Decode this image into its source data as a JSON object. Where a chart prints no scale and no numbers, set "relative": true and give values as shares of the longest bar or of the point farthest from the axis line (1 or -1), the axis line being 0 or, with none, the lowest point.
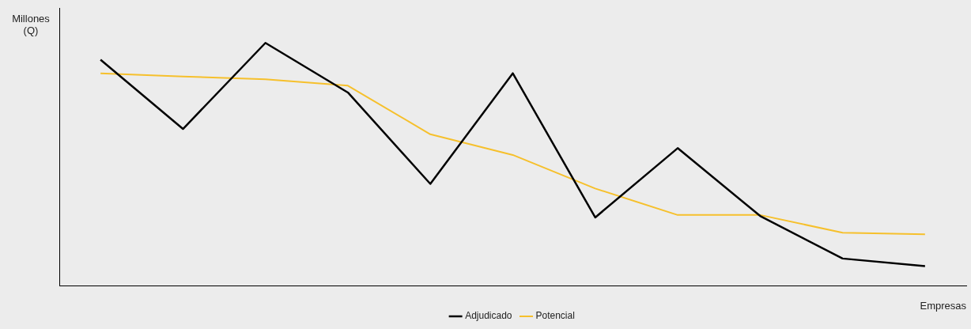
{
  "chart_data": {
    "type": "line",
    "relative": true,
    "ylabel": "Millones (Q)",
    "xlabel": "Empresas",
    "legend": "bottom",
    "grid": false,
    "marker": "none",
    "line_style": "solid",
    "categories": [
      null,
      null,
      null,
      null,
      null,
      null,
      null,
      null,
      null,
      null,
      null
    ],
    "series": [
      {
        "name": "Adjudicado",
        "color": "#000000",
        "values": [
          0.931,
          0.646,
          1,
          0.796,
          0.42,
          0.875,
          0.282,
          0.567,
          0.288,
          0.113,
          0.082
        ]
      },
      {
        "name": "Potencial",
        "color": "#f6c02c",
        "values": [
          0.875,
          0.862,
          0.85,
          0.824,
          0.624,
          0.539,
          0.401,
          0.292,
          0.292,
          0.219,
          0.213
        ]
      }
    ]
  }
}
